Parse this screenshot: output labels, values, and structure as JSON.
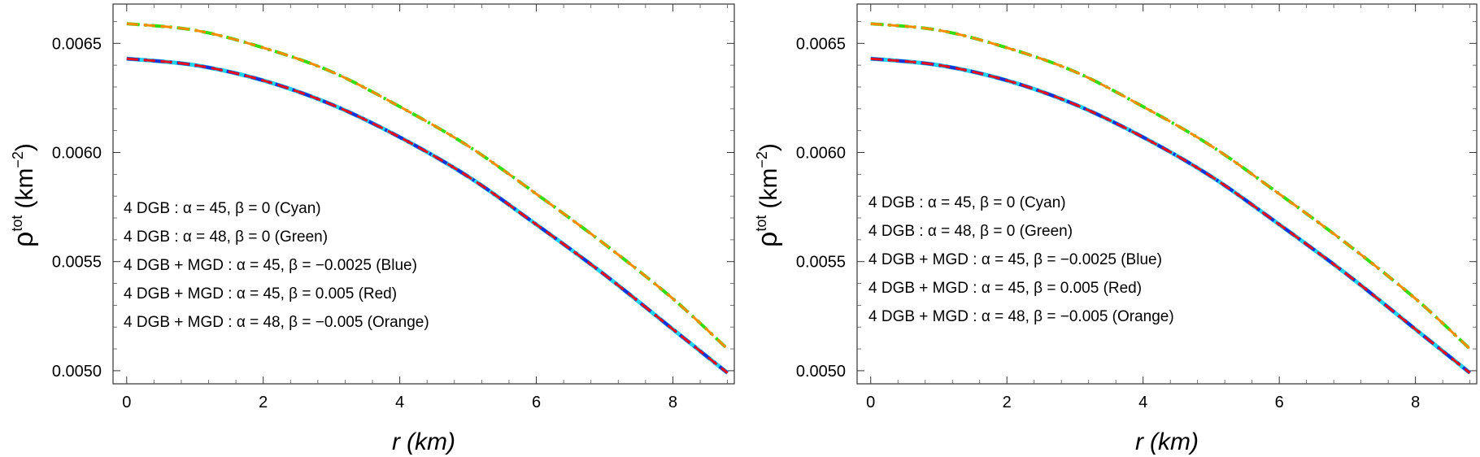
{
  "colors": {
    "cyan": "#22d3ee",
    "green": "#33dd11",
    "blue": "#1a2fd6",
    "red": "#e8101a",
    "orange": "#ff8c00"
  },
  "chart_data": [
    {
      "type": "line",
      "xlabel": "r (km)",
      "xlabel_main": "r",
      "xlabel_unit": "(km)",
      "ylabel_main": "ρ",
      "ylabel_sup": "tot",
      "ylabel_unit": "(km",
      "ylabel_unit_exp": "−2",
      "ylabel_close": ")",
      "xlim": [
        -0.2,
        8.9
      ],
      "ylim": [
        0.00494,
        0.00668
      ],
      "xticks": [
        0,
        2,
        4,
        6,
        8
      ],
      "xtick_labels": [
        "0",
        "2",
        "4",
        "6",
        "8"
      ],
      "yticks": [
        0.005,
        0.0055,
        0.006,
        0.0065
      ],
      "ytick_labels": [
        "0.0050",
        "0.0055",
        "0.0060",
        "0.0065"
      ],
      "legend_position": "bottom-left",
      "legend": [
        "4 DGB :  α = 45,  β = 0 (Cyan)",
        "4 DGB : α = 48,  β = 0 (Green)",
        "4 DGB + MGD : α = 45,  β = −0.0025 (Blue)",
        "4 DGB + MGD : α = 45,  β = 0.005 (Red)",
        "4 DGB + MGD : α = 48,  β = −0.005 (Orange)"
      ],
      "x": [
        0,
        1,
        2,
        3,
        4,
        5,
        6,
        7,
        8,
        8.8
      ],
      "series": [
        {
          "name": "Cyan",
          "color_key": "cyan",
          "dash": "solid",
          "values": [
            0.00643,
            0.0064,
            0.00633,
            0.00622,
            0.00607,
            0.00589,
            0.00567,
            0.00544,
            0.00519,
            0.00499
          ]
        },
        {
          "name": "Green",
          "color_key": "green",
          "dash": "dashdot",
          "values": [
            0.00659,
            0.00656,
            0.00648,
            0.00637,
            0.00621,
            0.00603,
            0.00581,
            0.00558,
            0.00533,
            0.0051
          ]
        },
        {
          "name": "Blue",
          "color_key": "blue",
          "dash": "dashdot",
          "values": [
            0.00643,
            0.0064,
            0.00633,
            0.00622,
            0.00607,
            0.00589,
            0.00567,
            0.00544,
            0.00519,
            0.00499
          ]
        },
        {
          "name": "Red",
          "color_key": "red",
          "dash": "dashed",
          "values": [
            0.00643,
            0.0064,
            0.00633,
            0.00622,
            0.00607,
            0.00589,
            0.00567,
            0.00544,
            0.00519,
            0.00499
          ]
        },
        {
          "name": "Orange",
          "color_key": "orange",
          "dash": "dashed",
          "values": [
            0.00659,
            0.00656,
            0.00648,
            0.00637,
            0.00621,
            0.00603,
            0.00581,
            0.00558,
            0.00533,
            0.0051
          ]
        }
      ]
    },
    {
      "type": "line",
      "xlabel": "r (km)",
      "xlabel_main": "r",
      "xlabel_unit": "(km)",
      "ylabel_main": "ρ",
      "ylabel_sup": "tot",
      "ylabel_unit": "(km",
      "ylabel_unit_exp": "−2",
      "ylabel_close": ")",
      "xlim": [
        -0.2,
        8.9
      ],
      "ylim": [
        0.00494,
        0.00668
      ],
      "xticks": [
        0,
        2,
        4,
        6,
        8
      ],
      "xtick_labels": [
        "0",
        "2",
        "4",
        "6",
        "8"
      ],
      "yticks": [
        0.005,
        0.0055,
        0.006,
        0.0065
      ],
      "ytick_labels": [
        "0.0050",
        "0.0055",
        "0.0060",
        "0.0065"
      ],
      "legend_position": "bottom-left",
      "legend": [
        "4 DGB :  α = 45,  β = 0 (Cyan)",
        "4 DGB : α = 48,  β = 0 (Green)",
        "4 DGB + MGD : α = 45,  β = −0.0025 (Blue)",
        "4 DGB + MGD : α = 45,  β = 0.005 (Red)",
        "4 DGB + MGD : α = 48,  β = −0.005 (Orange)"
      ],
      "x": [
        0,
        1,
        2,
        3,
        4,
        5,
        6,
        7,
        8,
        8.8
      ],
      "series": [
        {
          "name": "Cyan",
          "color_key": "cyan",
          "dash": "solid",
          "values": [
            0.00643,
            0.0064,
            0.00633,
            0.00622,
            0.00607,
            0.00589,
            0.00567,
            0.00544,
            0.00519,
            0.00499
          ]
        },
        {
          "name": "Green",
          "color_key": "green",
          "dash": "dashdot",
          "values": [
            0.00659,
            0.00656,
            0.00648,
            0.00637,
            0.00621,
            0.00603,
            0.00581,
            0.00558,
            0.00533,
            0.0051
          ]
        },
        {
          "name": "Blue",
          "color_key": "blue",
          "dash": "dashdot",
          "values": [
            0.00643,
            0.0064,
            0.00633,
            0.00622,
            0.00607,
            0.00589,
            0.00567,
            0.00544,
            0.00519,
            0.00499
          ]
        },
        {
          "name": "Red",
          "color_key": "red",
          "dash": "dashed",
          "values": [
            0.00643,
            0.0064,
            0.00633,
            0.00622,
            0.00607,
            0.00589,
            0.00567,
            0.00544,
            0.00519,
            0.00499
          ]
        },
        {
          "name": "Orange",
          "color_key": "orange",
          "dash": "dashed",
          "values": [
            0.00659,
            0.00656,
            0.00648,
            0.00637,
            0.00621,
            0.00603,
            0.00581,
            0.00558,
            0.00533,
            0.0051
          ]
        }
      ]
    }
  ]
}
